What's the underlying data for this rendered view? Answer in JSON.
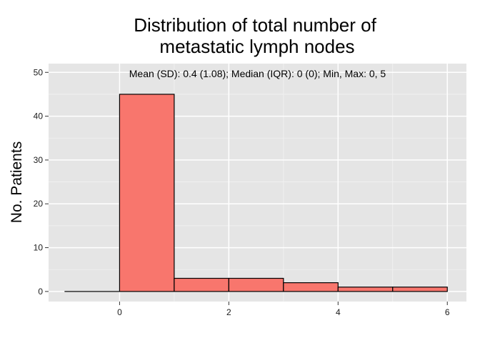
{
  "chart_data": {
    "type": "bar",
    "title_lines": [
      "Distribution of total number of",
      "metastatic lymph nodes"
    ],
    "xlabel": "",
    "ylabel": "No. Patients",
    "annotation": "Mean (SD): 0.4 (1.08); Median (IQR): 0 (0); Min, Max: 0, 5",
    "xlim": [
      -1.3,
      6.35
    ],
    "ylim": [
      -2.3,
      52
    ],
    "x_ticks": [
      0,
      2,
      4,
      6
    ],
    "y_ticks": [
      0,
      10,
      20,
      30,
      40,
      50
    ],
    "bins": [
      {
        "x0": -1,
        "x1": 0,
        "count": 0
      },
      {
        "x0": 0,
        "x1": 1,
        "count": 45
      },
      {
        "x0": 1,
        "x1": 2,
        "count": 3
      },
      {
        "x0": 2,
        "x1": 3,
        "count": 3
      },
      {
        "x0": 3,
        "x1": 4,
        "count": 2
      },
      {
        "x0": 4,
        "x1": 5,
        "count": 1
      },
      {
        "x0": 5,
        "x1": 6,
        "count": 1
      }
    ],
    "grid": true,
    "legend": "none",
    "colors": {
      "panel": "#e5e5e5",
      "grid_major": "#ffffff",
      "grid_minor": "#f2f2f2",
      "bar_fill": "#f8766d",
      "bar_stroke": "#000000"
    }
  }
}
